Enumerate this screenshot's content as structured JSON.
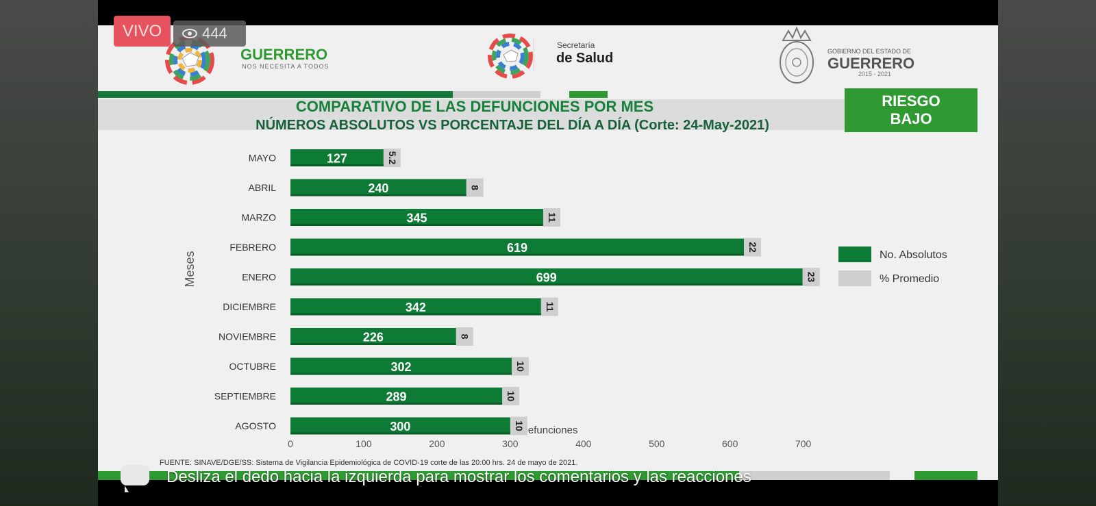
{
  "live": {
    "label": "VIVO",
    "viewers": "444"
  },
  "header": {
    "brand1_main": "GUERRERO",
    "brand1_sub": "NOS NECESITA A TODOS",
    "brand2_top": "Secretaría",
    "brand2_main": "de Salud",
    "brand3_top": "GOBIERNO DEL ESTADO DE",
    "brand3_main": "GUERRERO",
    "brand3_years": "2015 - 2021"
  },
  "risk": {
    "line1": "RIESGO",
    "line2": "BAJO"
  },
  "footer": {
    "source": "FUENTE: SINAVE/DGE/SS: Sistema de Vigilancia Epidemiológica de COVID-19 corte de las 20:00 hrs. 24 de mayo  de 2021."
  },
  "caption": "Desliza el dedo hacia la izquierda para mostrar los comentarios y las reacciones",
  "colors": {
    "green": "#0d7a35",
    "grey": "#cfcfcf",
    "risk_green": "#2f9a32",
    "live_red": "#e6535e"
  },
  "chart_data": {
    "type": "bar",
    "orientation": "horizontal",
    "title": "COMPARATIVO DE LAS DEFUNCIONES POR MES",
    "subtitle": "NÚMEROS ABSOLUTOS VS PORCENTAJE DEL DÍA A DÍA   (Corte: 24-May-2021)",
    "xlabel": "No. Defunciones",
    "ylabel": "Meses",
    "xlim": [
      0,
      720
    ],
    "xticks": [
      0,
      100,
      200,
      300,
      400,
      500,
      600,
      700
    ],
    "categories": [
      "MAYO",
      "ABRIL",
      "MARZO",
      "FEBRERO",
      "ENERO",
      "DICIEMBRE",
      "NOVIEMBRE",
      "OCTUBRE",
      "SEPTIEMBRE",
      "AGOSTO"
    ],
    "series": [
      {
        "name": "No. Absolutos",
        "color": "#0d7a35",
        "values": [
          127,
          240,
          345,
          619,
          699,
          342,
          226,
          302,
          289,
          300
        ]
      },
      {
        "name": "% Promedio",
        "color": "#cfcfcf",
        "values": [
          5.2,
          8,
          11,
          22,
          23,
          11,
          8,
          10,
          10,
          10
        ],
        "labels": [
          "5.2",
          "8",
          "11",
          "22",
          "23",
          "11",
          "8",
          "10",
          "10",
          "10"
        ]
      }
    ],
    "legend_position": "right",
    "grid": false
  }
}
